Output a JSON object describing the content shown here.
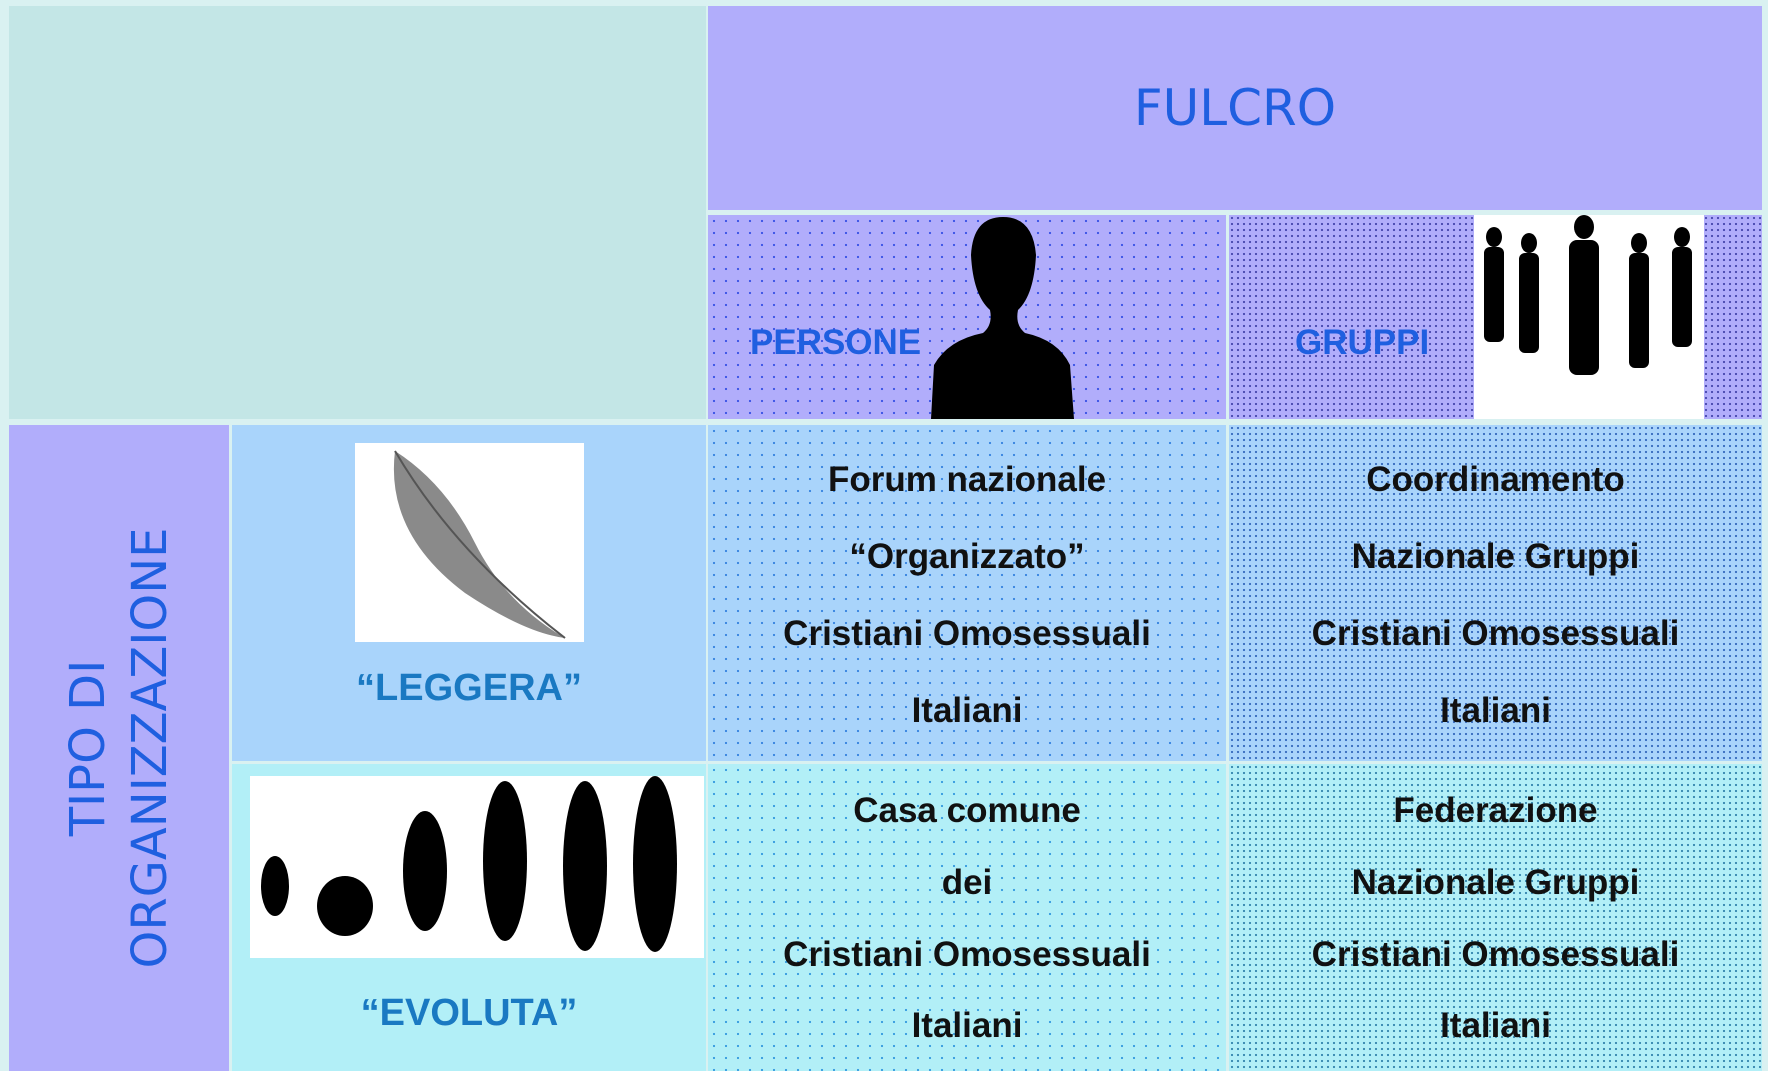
{
  "header": {
    "title": "FULCRO"
  },
  "columns": [
    {
      "label": "PERSONE"
    },
    {
      "label": "GRUPPI"
    }
  ],
  "row_header": {
    "lines": [
      "TIPO DI",
      "ORGANIZZAZIONE"
    ]
  },
  "rows": [
    {
      "label": "“LEGGERA”",
      "cells": [
        [
          "Forum nazionale",
          "“Organizzato”",
          "Cristiani Omosessuali",
          "Italiani"
        ],
        [
          "Coordinamento",
          "Nazionale Gruppi",
          "Cristiani Omosessuali",
          "Italiani"
        ]
      ]
    },
    {
      "label": "“EVOLUTA”",
      "cells": [
        [
          "Casa comune",
          "dei",
          "Cristiani Omosessuali",
          "Italiani"
        ],
        [
          "Federazione",
          "Nazionale Gruppi",
          "Cristiani Omosessuali",
          "Italiani"
        ]
      ]
    }
  ]
}
